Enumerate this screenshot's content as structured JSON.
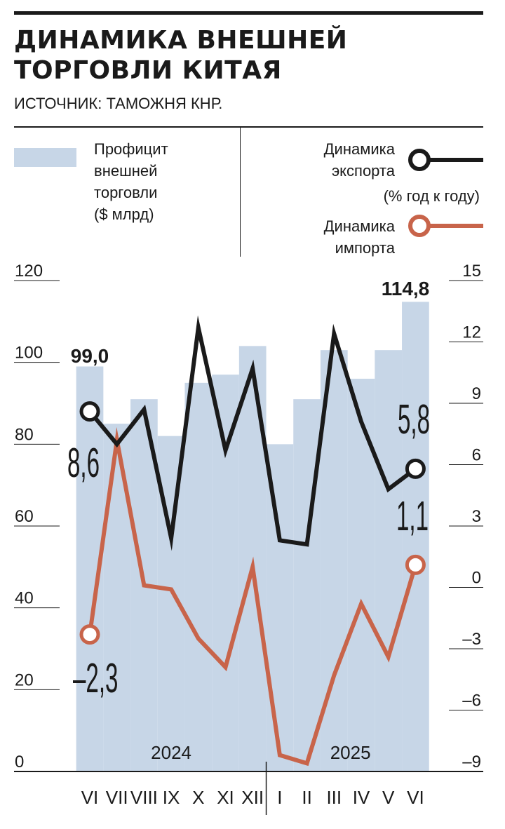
{
  "header": {
    "title_line1": "ДИНАМИКА ВНЕШНЕЙ",
    "title_line2": "ТОРГОВЛИ КИТАЯ",
    "source": "ИСТОЧНИК: ТАМОЖНЯ КНР."
  },
  "legend": {
    "surplus_l1": "Профицит",
    "surplus_l2": "внешней",
    "surplus_l3": "торговли",
    "surplus_l4": "($ млрд)",
    "export_l1": "Динамика",
    "export_l2": "экспорта",
    "unit": "(% год к году)",
    "import_l1": "Динамика",
    "import_l2": "импорта"
  },
  "colors": {
    "bars": "#c7d6e7",
    "export": "#1a1a1a",
    "import": "#c8644a"
  },
  "chart_data": {
    "type": "bar+line",
    "title": "ДИНАМИКА ВНЕШНЕЙ ТОРГОВЛИ КИТАЯ",
    "categories": [
      "VI",
      "VII",
      "VIII",
      "IX",
      "X",
      "XI",
      "XII",
      "I",
      "II",
      "III",
      "IV",
      "V",
      "VI"
    ],
    "year_labels": [
      {
        "label": "2024",
        "from": 0,
        "to": 6
      },
      {
        "label": "2025",
        "from": 7,
        "to": 12
      }
    ],
    "left_axis": {
      "ylim": [
        0,
        120
      ],
      "ticks": [
        0,
        20,
        40,
        60,
        80,
        100,
        120
      ]
    },
    "right_axis": {
      "ylim": [
        -9,
        15
      ],
      "ticks": [
        -9,
        -6,
        -3,
        0,
        3,
        6,
        9,
        12,
        15
      ],
      "tick_labels": [
        "–9",
        "–6",
        "–3",
        "0",
        "3",
        "6",
        "9",
        "12",
        "15"
      ]
    },
    "surplus": {
      "name": "Профицит внешней торговли ($ млрд)",
      "values": [
        99.0,
        85,
        91,
        82,
        95,
        97,
        104,
        80,
        91,
        103,
        96,
        103,
        114.8
      ]
    },
    "export": {
      "name": "Динамика экспорта",
      "values": [
        8.6,
        7.0,
        8.7,
        2.4,
        12.7,
        6.7,
        10.7,
        2.3,
        2.1,
        12.4,
        8.1,
        4.8,
        5.8
      ]
    },
    "import": {
      "name": "Динамика импорта",
      "values": [
        -2.3,
        7.2,
        0.1,
        -0.1,
        -2.5,
        -3.9,
        1.0,
        -8.2,
        -8.6,
        -4.3,
        -0.8,
        -3.4,
        1.1
      ]
    },
    "annotations": {
      "surplus_first": "99,0",
      "surplus_last": "114,8",
      "export_first": "8,6",
      "export_last": "5,8",
      "import_first": "–2,3",
      "import_last": "1,1"
    }
  }
}
